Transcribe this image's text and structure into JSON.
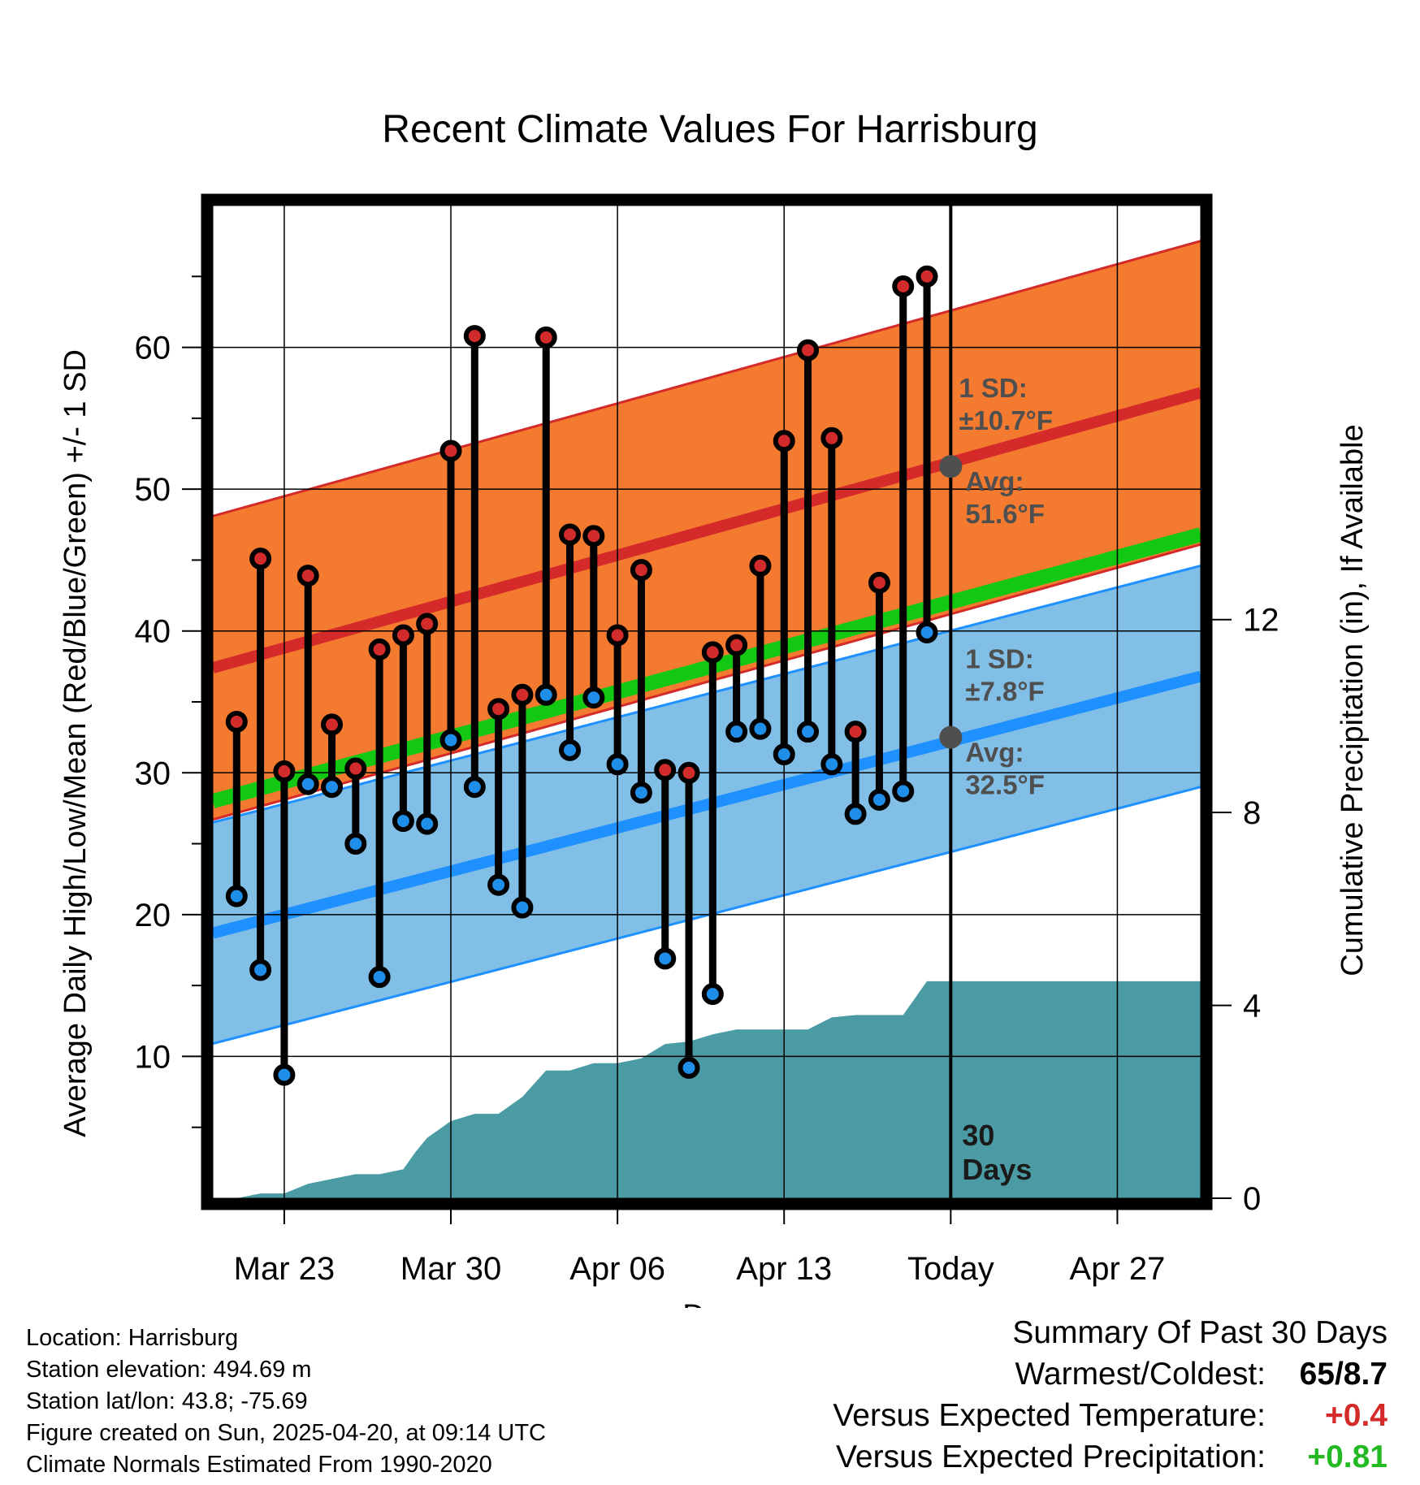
{
  "chart_data": {
    "type": "line",
    "title": "Recent Climate Values For Harrisburg",
    "xlabel": "Day",
    "ylabel_left": "Average Daily High/Low/Mean (Red/Blue/Green) +/- 1 SD",
    "ylabel_right": "Cumulative Precipitation (in), If Available",
    "ylim_left": [
      0,
      70
    ],
    "ylim_right": [
      0,
      20.588
    ],
    "y_ticks_left": [
      "10",
      "20",
      "30",
      "40",
      "50",
      "60"
    ],
    "y_ticks_right": [
      "0",
      "4",
      "8",
      "12"
    ],
    "x_ticks": [
      "Mar 23",
      "Mar 30",
      "Apr 06",
      "Apr 13",
      "Today",
      "Apr 27"
    ],
    "x_tick_days": [
      3,
      10,
      17,
      24,
      31,
      38
    ],
    "x_range_days": [
      0,
      41.5
    ],
    "grid": true,
    "daily_start_day": 1,
    "daily_highs": [
      33.6,
      45.1,
      30.1,
      43.9,
      33.4,
      30.3,
      38.7,
      39.7,
      40.5,
      52.7,
      60.8,
      34.5,
      35.5,
      60.7,
      46.8,
      46.7,
      39.7,
      44.3,
      30.2,
      30.0,
      38.5,
      39.0,
      44.6,
      53.4,
      59.8,
      53.6,
      32.9,
      43.4,
      64.3,
      65.0
    ],
    "daily_lows": [
      21.3,
      16.1,
      8.7,
      29.2,
      29.0,
      25.0,
      15.6,
      26.6,
      26.4,
      32.3,
      29.0,
      22.1,
      20.5,
      35.5,
      31.6,
      35.3,
      30.6,
      28.6,
      16.9,
      9.2,
      14.4,
      32.9,
      33.1,
      31.3,
      32.9,
      30.6,
      27.1,
      28.1,
      28.7,
      39.9
    ],
    "normal_high": {
      "start": 37.4,
      "end": 56.8
    },
    "normal_high_sd": 10.7,
    "normal_low": {
      "start": 18.7,
      "end": 36.8
    },
    "normal_low_sd": 7.8,
    "normal_mean": {
      "start": 28.0,
      "end": 46.8
    },
    "precip_cumulative": {
      "days": [
        0.5,
        1,
        2,
        3,
        4,
        5,
        6,
        7,
        8,
        8.5,
        9,
        10,
        11,
        12,
        13,
        14,
        15,
        16,
        17,
        18,
        19,
        20,
        21,
        22,
        23,
        24,
        25,
        26,
        27,
        28,
        29,
        30,
        31,
        32,
        35,
        41.5
      ],
      "values": [
        0,
        0,
        0.1,
        0.1,
        0.3,
        0.4,
        0.5,
        0.5,
        0.6,
        0.95,
        1.25,
        1.6,
        1.75,
        1.75,
        2.1,
        2.65,
        2.65,
        2.8,
        2.8,
        2.9,
        3.2,
        3.25,
        3.4,
        3.5,
        3.5,
        3.5,
        3.5,
        3.75,
        3.8,
        3.8,
        3.8,
        4.5,
        4.5,
        4.5,
        4.5,
        4.5
      ]
    },
    "annotations": {
      "high_sd_label": [
        "1 SD:",
        "±10.7°F"
      ],
      "high_avg_label": [
        "Avg:",
        "51.6°F"
      ],
      "low_sd_label": [
        "1 SD:",
        "±7.8°F"
      ],
      "low_avg_label": [
        "Avg:",
        "32.5°F"
      ],
      "today_avg_high": 51.6,
      "today_avg_low": 32.5,
      "window_label": [
        "30",
        "Days"
      ]
    },
    "colors": {
      "high_band": "#f47a30",
      "high_line": "#d42a2a",
      "low_band": "#82bfe6",
      "low_line": "#1e90ff",
      "mean_line": "#12c812",
      "precip": "#4a9ba3",
      "high_dot": "#d22b2b",
      "low_dot": "#1f8ee8",
      "annotation": "#4f4f4f"
    }
  },
  "footer": {
    "location": "Location: Harrisburg",
    "elevation": "Station elevation: 494.69 m",
    "latlon": "Station lat/lon: 43.8; -75.69",
    "created": "Figure created on Sun, 2025-04-20, at 09:14 UTC",
    "normals": "Climate Normals Estimated From 1990-2020"
  },
  "summary": {
    "heading": "Summary Of Past 30 Days",
    "warmest_label": "Warmest/Coldest:",
    "warmest_value": "65/8.7",
    "temp_label": "Versus Expected Temperature:",
    "temp_value": "+0.4",
    "precip_label": "Versus Expected Precipitation:",
    "precip_value": "+0.81"
  }
}
